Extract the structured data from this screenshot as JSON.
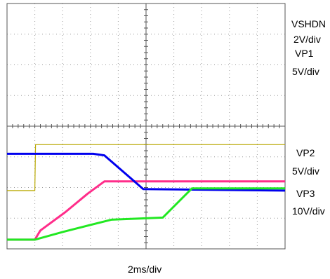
{
  "chart_data": {
    "type": "line",
    "timebase": "2ms/div",
    "x_unit": "ms",
    "xlim": [
      0,
      20
    ],
    "grid": true,
    "series": [
      {
        "name": "VSHDN",
        "scale": "2V/div",
        "color": "#b8a800",
        "points": [
          [
            0,
            1.9
          ],
          [
            2.0,
            1.9
          ],
          [
            2.05,
            3.4
          ],
          [
            20,
            3.4
          ]
        ]
      },
      {
        "name": "VP1",
        "scale": "5V/div",
        "color": "#ff2d8a",
        "points": [
          [
            0,
            0.3
          ],
          [
            2.0,
            0.3
          ],
          [
            2.4,
            0.6
          ],
          [
            4.2,
            1.2
          ],
          [
            5.8,
            1.8
          ],
          [
            7.0,
            2.2
          ],
          [
            20,
            2.2
          ]
        ]
      },
      {
        "name": "VP2",
        "scale": "5V/div",
        "color": "#0000ee",
        "points": [
          [
            0,
            3.1
          ],
          [
            6.2,
            3.1
          ],
          [
            7.0,
            3.05
          ],
          [
            9.8,
            1.95
          ],
          [
            20,
            1.9
          ]
        ]
      },
      {
        "name": "VP3",
        "scale": "10V/div",
        "color": "#22e822",
        "points": [
          [
            0,
            0.3
          ],
          [
            2.0,
            0.3
          ],
          [
            4.0,
            0.55
          ],
          [
            7.5,
            0.95
          ],
          [
            11.2,
            1.02
          ],
          [
            13.3,
            1.97
          ],
          [
            20,
            1.97
          ]
        ]
      }
    ]
  },
  "labels": {
    "vshdn_name": "VSHDN",
    "vshdn_scale": "2V/div",
    "vp1_name": "VP1",
    "vp1_scale": "5V/div",
    "vp2_name": "VP2",
    "vp2_scale": "5V/div",
    "vp3_name": "VP3",
    "vp3_scale": "10V/div",
    "timebase": "2ms/div"
  }
}
